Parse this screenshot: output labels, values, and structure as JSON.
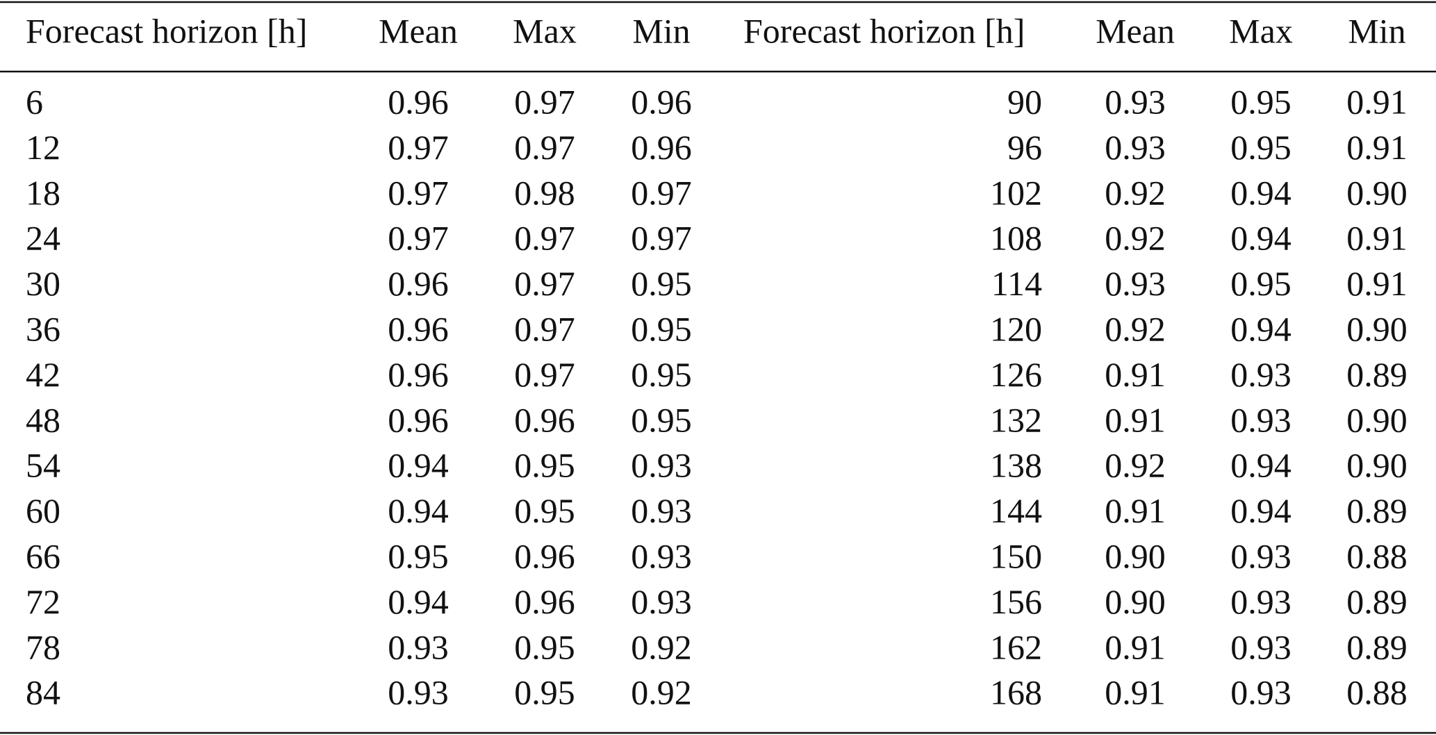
{
  "table": {
    "header": [
      "Forecast horizon [h]",
      "Mean",
      "Max",
      "Min",
      "Forecast horizon [h]",
      "Mean",
      "Max",
      "Min"
    ],
    "rows": [
      [
        "6",
        "0.96",
        "0.97",
        "0.96",
        "90",
        "0.93",
        "0.95",
        "0.91"
      ],
      [
        "12",
        "0.97",
        "0.97",
        "0.96",
        "96",
        "0.93",
        "0.95",
        "0.91"
      ],
      [
        "18",
        "0.97",
        "0.98",
        "0.97",
        "102",
        "0.92",
        "0.94",
        "0.90"
      ],
      [
        "24",
        "0.97",
        "0.97",
        "0.97",
        "108",
        "0.92",
        "0.94",
        "0.91"
      ],
      [
        "30",
        "0.96",
        "0.97",
        "0.95",
        "114",
        "0.93",
        "0.95",
        "0.91"
      ],
      [
        "36",
        "0.96",
        "0.97",
        "0.95",
        "120",
        "0.92",
        "0.94",
        "0.90"
      ],
      [
        "42",
        "0.96",
        "0.97",
        "0.95",
        "126",
        "0.91",
        "0.93",
        "0.89"
      ],
      [
        "48",
        "0.96",
        "0.96",
        "0.95",
        "132",
        "0.91",
        "0.93",
        "0.90"
      ],
      [
        "54",
        "0.94",
        "0.95",
        "0.93",
        "138",
        "0.92",
        "0.94",
        "0.90"
      ],
      [
        "60",
        "0.94",
        "0.95",
        "0.93",
        "144",
        "0.91",
        "0.94",
        "0.89"
      ],
      [
        "66",
        "0.95",
        "0.96",
        "0.93",
        "150",
        "0.90",
        "0.93",
        "0.88"
      ],
      [
        "72",
        "0.94",
        "0.96",
        "0.93",
        "156",
        "0.90",
        "0.93",
        "0.89"
      ],
      [
        "78",
        "0.93",
        "0.95",
        "0.92",
        "162",
        "0.91",
        "0.93",
        "0.89"
      ],
      [
        "84",
        "0.93",
        "0.95",
        "0.92",
        "168",
        "0.91",
        "0.93",
        "0.88"
      ]
    ]
  }
}
